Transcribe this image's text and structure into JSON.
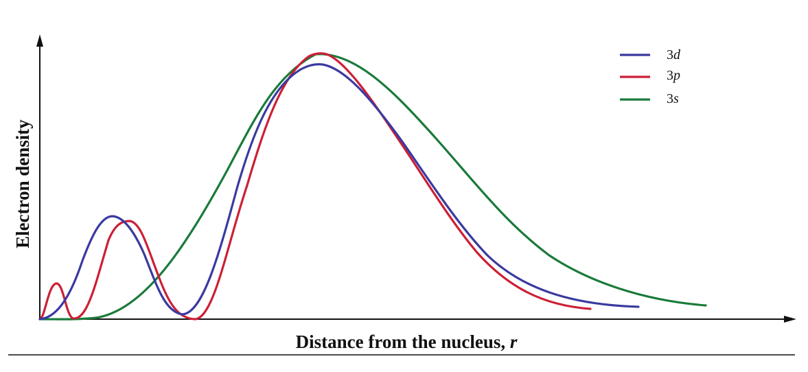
{
  "chart_data": {
    "type": "line",
    "xlabel_main": "Distance from the nucleus, ",
    "xlabel_var": "r",
    "ylabel": "Electron density",
    "xlim": [
      0,
      10
    ],
    "ylim": [
      0,
      1
    ],
    "grid": false,
    "legend_position": "top-right",
    "series": [
      {
        "name": "3d",
        "color": "#3a3aa0",
        "x": [
          0,
          0.25,
          0.5,
          0.75,
          1.0,
          1.25,
          1.5,
          1.75,
          2.0,
          2.25,
          2.5,
          2.75,
          3.0,
          3.25,
          3.5,
          3.75,
          4.0,
          4.25,
          4.5,
          4.75,
          5.0,
          5.25,
          5.5,
          5.75,
          6.0,
          6.5,
          7.0,
          7.5,
          8.0,
          8.5,
          9.0,
          9.5,
          10.0
        ],
        "y": [
          0,
          0.02,
          0.11,
          0.3,
          0.39,
          0.33,
          0.17,
          0.03,
          0.02,
          0.15,
          0.47,
          0.76,
          0.93,
          0.97,
          0.9,
          0.77,
          0.6,
          0.44,
          0.3,
          0.2,
          0.13,
          0.09,
          0.06,
          0.045,
          0.03,
          0.02,
          0.015,
          0.01,
          0.008,
          0.006,
          0.005,
          0.004,
          0.003
        ]
      },
      {
        "name": "3p",
        "color": "#cc1f36",
        "x": [
          0,
          0.25,
          0.5,
          0.75,
          1.0,
          1.25,
          1.5,
          1.75,
          2.0,
          2.25,
          2.5,
          2.75,
          3.0,
          3.25,
          3.5,
          3.75,
          4.0,
          4.25,
          4.5,
          4.75,
          5.0,
          5.25,
          5.5,
          5.75,
          6.0,
          6.5,
          7.0,
          7.5,
          8.0,
          8.5,
          9.0,
          9.5,
          10.0
        ],
        "y": [
          0,
          0.12,
          0.0,
          0.01,
          0.17,
          0.37,
          0.28,
          0.02,
          0.01,
          0.12,
          0.4,
          0.73,
          0.95,
          1.0,
          0.92,
          0.77,
          0.59,
          0.42,
          0.28,
          0.18,
          0.11,
          0.07,
          0.045,
          0.03,
          0.02,
          0.014,
          0.01,
          0.007,
          0.005,
          0.004,
          0.003,
          0.002,
          0.001
        ]
      },
      {
        "name": "3s",
        "color": "#1a7a3a",
        "x": [
          0,
          0.25,
          0.5,
          0.75,
          1.0,
          1.25,
          1.5,
          1.75,
          2.0,
          2.25,
          2.5,
          2.75,
          3.0,
          3.25,
          3.5,
          3.75,
          4.0,
          4.25,
          4.5,
          4.75,
          5.0,
          5.25,
          5.5,
          5.75,
          6.0,
          6.5,
          7.0,
          7.5,
          8.0,
          8.5,
          9.0,
          9.5,
          10.0
        ],
        "y": [
          0,
          0.0,
          0.01,
          0.02,
          0.05,
          0.12,
          0.21,
          0.37,
          0.55,
          0.77,
          0.9,
          0.98,
          1.0,
          0.99,
          0.92,
          0.83,
          0.72,
          0.61,
          0.5,
          0.4,
          0.31,
          0.24,
          0.18,
          0.13,
          0.1,
          0.06,
          0.04,
          0.03,
          0.02,
          0.015,
          0.01,
          0.008,
          0.006
        ]
      }
    ],
    "legend": [
      {
        "num": "3",
        "letter": "d",
        "color": "#3a3aa0"
      },
      {
        "num": "3",
        "letter": "p",
        "color": "#cc1f36"
      },
      {
        "num": "3",
        "letter": "s",
        "color": "#1a7a3a"
      }
    ]
  }
}
